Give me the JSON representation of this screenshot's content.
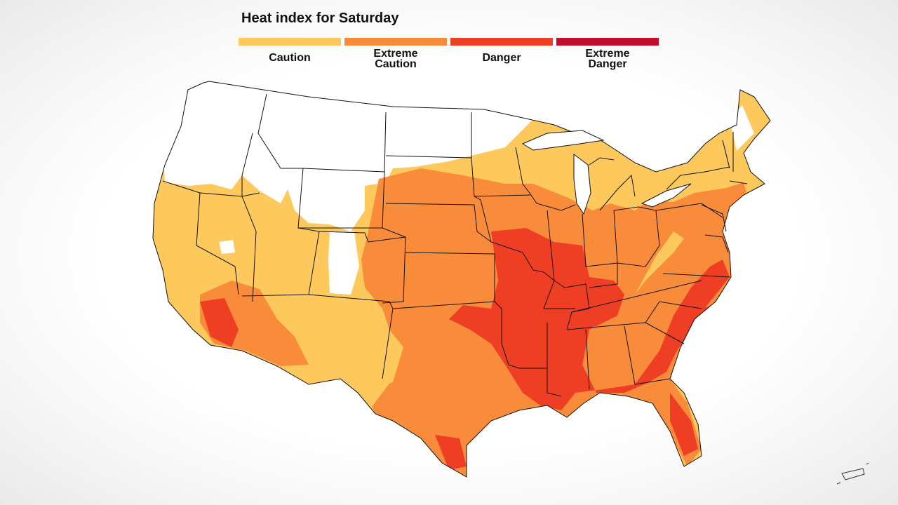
{
  "title": "Heat index for Saturday",
  "legend": [
    {
      "label": "Caution",
      "color": "#fdc95c"
    },
    {
      "label": "Extreme\nCaution",
      "color": "#f98c3a"
    },
    {
      "label": "Danger",
      "color": "#ee3f24"
    },
    {
      "label": "Extreme\nDanger",
      "color": "#c30d2c"
    }
  ]
}
